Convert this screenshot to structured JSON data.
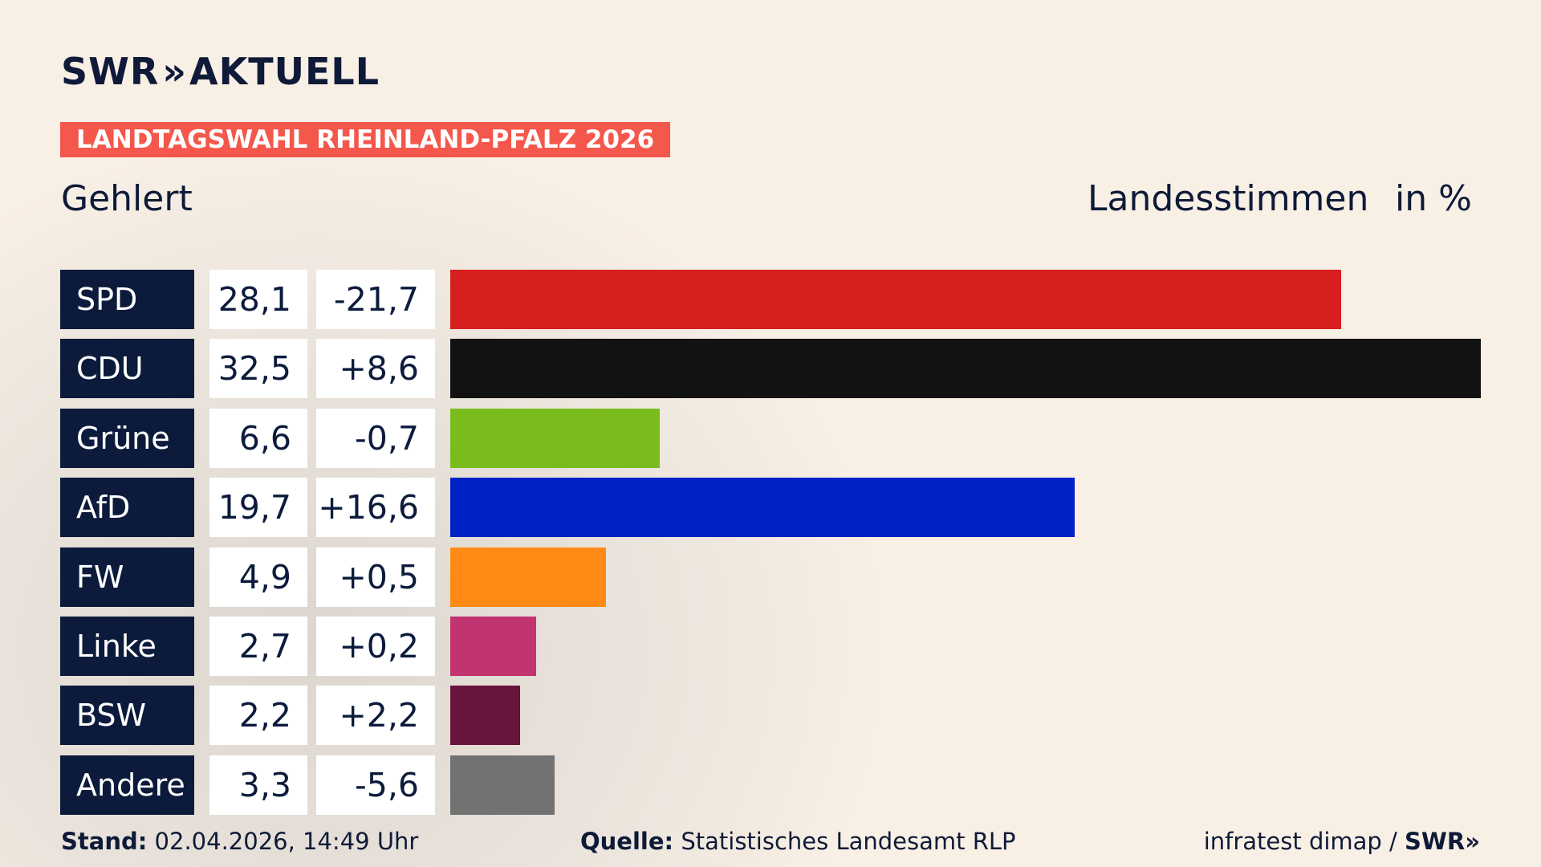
{
  "brand": {
    "name": "SWR",
    "chevrons": "»",
    "product": "AKTUELL"
  },
  "tag": "LANDTAGSWAHL RHEINLAND-PFALZ 2026",
  "subtitle": "Gehlert",
  "header_right": {
    "label": "Landesstimmen",
    "unit": "in %"
  },
  "chart_data": {
    "type": "bar",
    "orientation": "horizontal",
    "unit": "in %",
    "categories": [
      "SPD",
      "CDU",
      "Grüne",
      "AfD",
      "FW",
      "Linke",
      "BSW",
      "Andere"
    ],
    "values": [
      28.1,
      32.5,
      6.6,
      19.7,
      4.9,
      2.7,
      2.2,
      3.3
    ],
    "value_labels": [
      "28,1",
      "32,5",
      "6,6",
      "19,7",
      "4,9",
      "2,7",
      "2,2",
      "3,3"
    ],
    "change_labels": [
      "-21,7",
      "+8,6",
      "-0,7",
      "+16,6",
      "+0,5",
      "+0,2",
      "+2,2",
      "-5,6"
    ],
    "changes": [
      -21.7,
      8.6,
      -0.7,
      16.6,
      0.5,
      0.2,
      2.2,
      -5.6
    ],
    "colors": [
      "#d81f20",
      "#121212",
      "#7abc1e",
      "#0021c6",
      "#ff8b16",
      "#c23371",
      "#68143c",
      "#727272"
    ],
    "xlim": [
      0,
      32.5
    ]
  },
  "footer": {
    "stand_label": "Stand:",
    "stand_value": "02.04.2026, 14:49 Uhr",
    "source_label": "Quelle:",
    "source_value": "Statistisches Landesamt RLP",
    "credit": "infratest dimap /",
    "credit_brand": "SWR»"
  }
}
